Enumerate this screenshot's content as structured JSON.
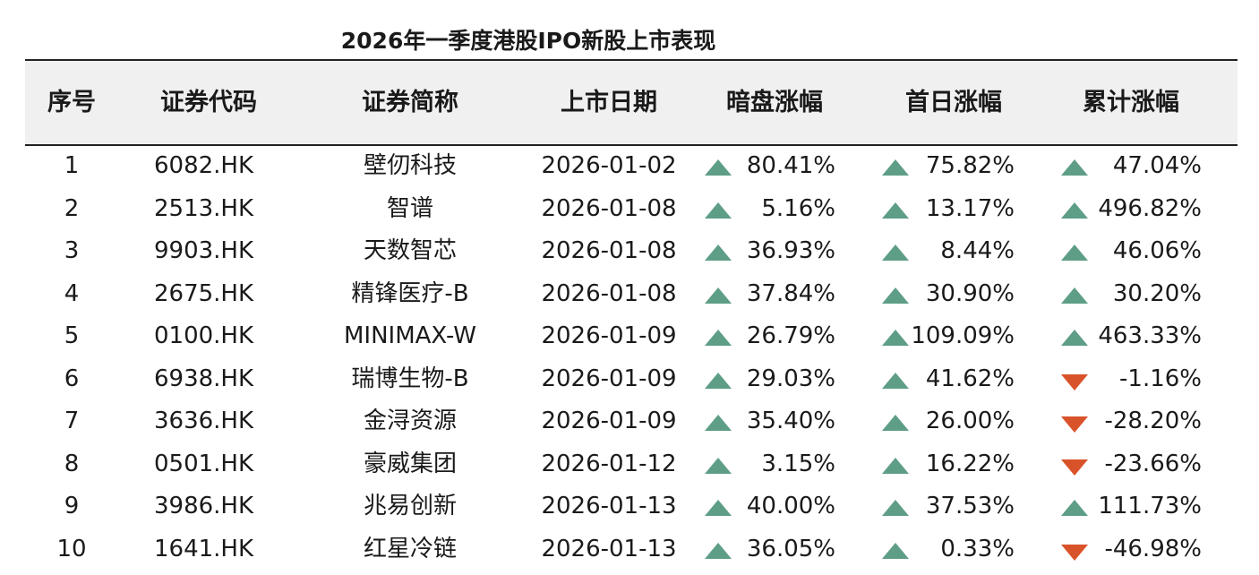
{
  "title": "2026年一季度港股IPO新股上市表现",
  "colors": {
    "up": "#5e9e86",
    "down": "#d9532a",
    "header_bg": "#f0f0f0"
  },
  "headers": [
    "序号",
    "证券代码",
    "证券简称",
    "上市日期",
    "暗盘涨幅",
    "首日涨幅",
    "累计涨幅"
  ],
  "rows": [
    {
      "idx": "1",
      "code": "6082.HK",
      "name": "壁仞科技",
      "date": "2026-01-02",
      "dark": "80.41%",
      "dark_dir": "up",
      "first": "75.82%",
      "first_dir": "up",
      "cum": "47.04%",
      "cum_dir": "up"
    },
    {
      "idx": "2",
      "code": "2513.HK",
      "name": "智谱",
      "date": "2026-01-08",
      "dark": "5.16%",
      "dark_dir": "up",
      "first": "13.17%",
      "first_dir": "up",
      "cum": "496.82%",
      "cum_dir": "up"
    },
    {
      "idx": "3",
      "code": "9903.HK",
      "name": "天数智芯",
      "date": "2026-01-08",
      "dark": "36.93%",
      "dark_dir": "up",
      "first": "8.44%",
      "first_dir": "up",
      "cum": "46.06%",
      "cum_dir": "up"
    },
    {
      "idx": "4",
      "code": "2675.HK",
      "name": "精锋医疗-B",
      "date": "2026-01-08",
      "dark": "37.84%",
      "dark_dir": "up",
      "first": "30.90%",
      "first_dir": "up",
      "cum": "30.20%",
      "cum_dir": "up"
    },
    {
      "idx": "5",
      "code": "0100.HK",
      "name": "MINIMAX-W",
      "date": "2026-01-09",
      "dark": "26.79%",
      "dark_dir": "up",
      "first": "109.09%",
      "first_dir": "up",
      "cum": "463.33%",
      "cum_dir": "up"
    },
    {
      "idx": "6",
      "code": "6938.HK",
      "name": "瑞博生物-B",
      "date": "2026-01-09",
      "dark": "29.03%",
      "dark_dir": "up",
      "first": "41.62%",
      "first_dir": "up",
      "cum": "-1.16%",
      "cum_dir": "down"
    },
    {
      "idx": "7",
      "code": "3636.HK",
      "name": "金浔资源",
      "date": "2026-01-09",
      "dark": "35.40%",
      "dark_dir": "up",
      "first": "26.00%",
      "first_dir": "up",
      "cum": "-28.20%",
      "cum_dir": "down"
    },
    {
      "idx": "8",
      "code": "0501.HK",
      "name": "豪威集团",
      "date": "2026-01-12",
      "dark": "3.15%",
      "dark_dir": "up",
      "first": "16.22%",
      "first_dir": "up",
      "cum": "-23.66%",
      "cum_dir": "down"
    },
    {
      "idx": "9",
      "code": "3986.HK",
      "name": "兆易创新",
      "date": "2026-01-13",
      "dark": "40.00%",
      "dark_dir": "up",
      "first": "37.53%",
      "first_dir": "up",
      "cum": "111.73%",
      "cum_dir": "up"
    },
    {
      "idx": "10",
      "code": "1641.HK",
      "name": "红星冷链",
      "date": "2026-01-13",
      "dark": "36.05%",
      "dark_dir": "up",
      "first": "0.33%",
      "first_dir": "up",
      "cum": "-46.98%",
      "cum_dir": "down"
    }
  ]
}
